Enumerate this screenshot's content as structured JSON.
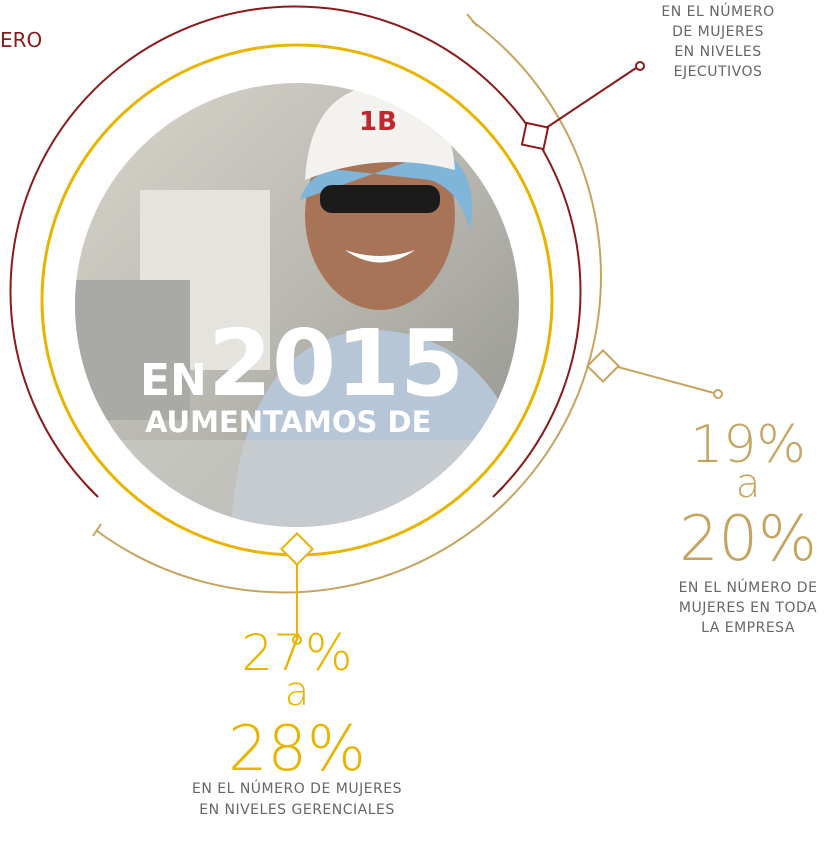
{
  "corner_text": "ERO",
  "center": {
    "prefix": "EN",
    "year": "2015",
    "subtitle": "AUMENTAMOS DE"
  },
  "executive": {
    "lines": [
      "EN EL NÚMERO",
      "DE MUJERES",
      "EN NIVELES",
      "EJECUTIVOS"
    ]
  },
  "company": {
    "from": "19%",
    "joiner": "a",
    "to": "20%",
    "lines": [
      "EN EL NÚMERO DE",
      "MUJERES EN TODA",
      "LA EMPRESA"
    ]
  },
  "management": {
    "from": "27%",
    "joiner": "a",
    "to": "28%",
    "lines": [
      "EN EL NÚMERO DE MUJERES",
      "EN NIVELES GERENCIALES"
    ]
  }
}
